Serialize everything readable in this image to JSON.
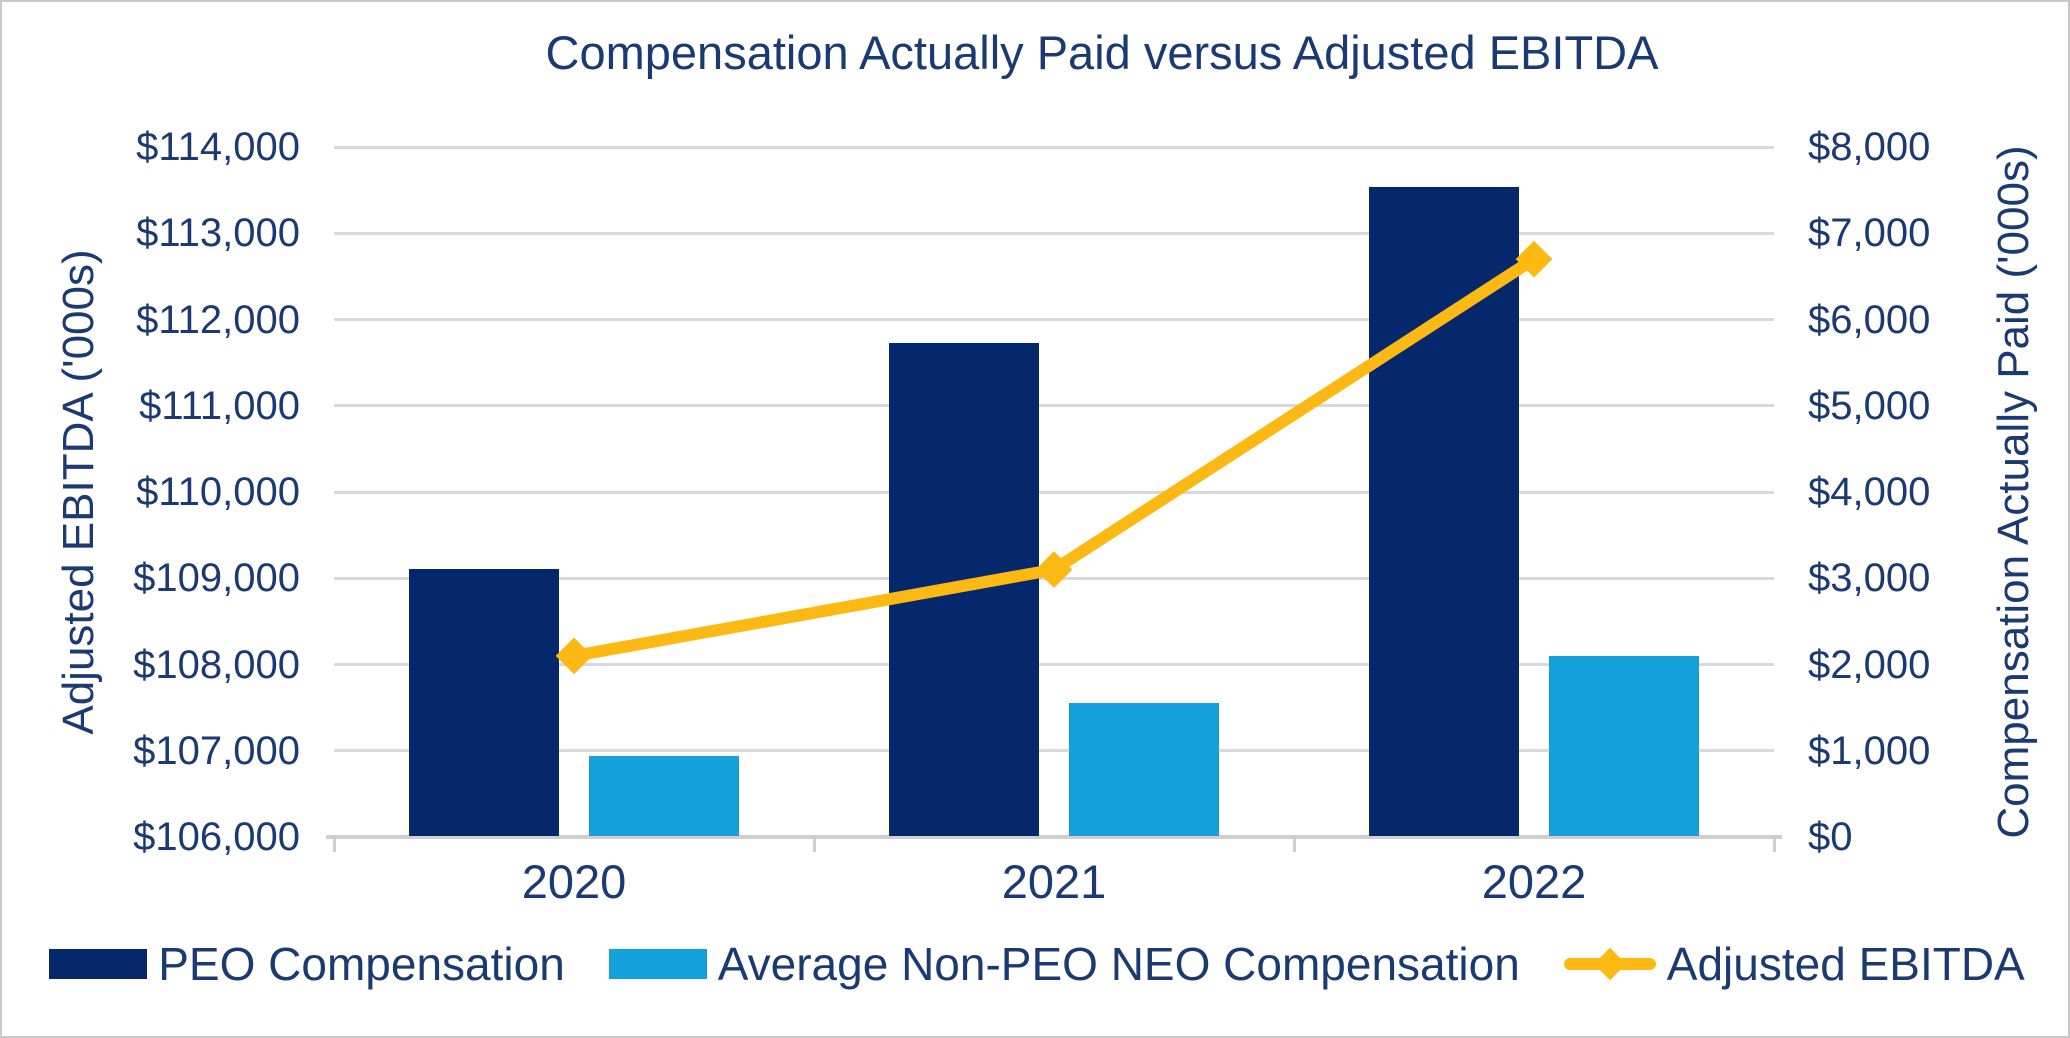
{
  "title": "Compensation Actually Paid versus Adjusted EBITDA",
  "chart_data": {
    "type": "combo-bar-line",
    "categories": [
      "2020",
      "2021",
      "2022"
    ],
    "series": [
      {
        "name": "PEO Compensation",
        "type": "bar",
        "axis": "right",
        "color": "#04286B",
        "values": [
          3090,
          5720,
          7525
        ]
      },
      {
        "name": "Average Non-PEO NEO Compensation",
        "type": "bar",
        "axis": "right",
        "color": "#14A0DB",
        "values": [
          925,
          1545,
          2090
        ]
      },
      {
        "name": "Adjusted EBITDA",
        "type": "line",
        "axis": "left",
        "color": "#FDB913",
        "marker": "diamond",
        "values": [
          108100,
          109100,
          112700
        ]
      }
    ],
    "left_axis": {
      "title": "Adjusted EBITDA ('000s)",
      "min": 106000,
      "max": 114000,
      "step": 1000,
      "tick_labels": [
        "$106,000",
        "$107,000",
        "$108,000",
        "$109,000",
        "$110,000",
        "$111,000",
        "$112,000",
        "$113,000",
        "$114,000"
      ]
    },
    "right_axis": {
      "title": "Compensation Actually Paid ('000s)",
      "min": 0,
      "max": 8000,
      "step": 1000,
      "tick_labels": [
        "$0",
        "$1,000",
        "$2,000",
        "$3,000",
        "$4,000",
        "$5,000",
        "$6,000",
        "$7,000",
        "$8,000"
      ]
    },
    "grid": true,
    "legend_position": "bottom"
  },
  "colors": {
    "text": "#1B3A73",
    "gridline": "#D9D9D9",
    "axis_line": "#CFCFCF",
    "border": "#C9C9C9",
    "background": "#FFFFFF"
  }
}
